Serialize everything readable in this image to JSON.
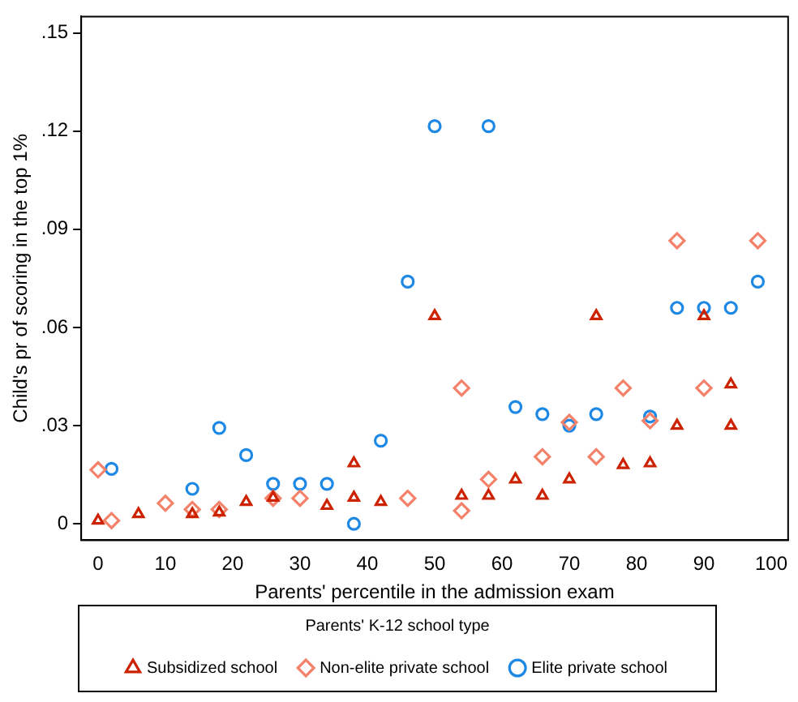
{
  "chart_data": {
    "type": "scatter",
    "xlabel": "Parents' percentile in the admission exam",
    "ylabel": "Child's pr of scoring in the top 1%",
    "legend_title": "Parents' K-12 school type",
    "legend": "bottom",
    "grid": false,
    "xlim": [
      -2.5,
      102.5
    ],
    "xticks": [
      0,
      10,
      20,
      30,
      40,
      50,
      60,
      70,
      80,
      90,
      100
    ],
    "ylim": [
      -0.005,
      0.155
    ],
    "yticks": [
      {
        "value": 0,
        "label": "0"
      },
      {
        "value": 0.03,
        "label": ".03"
      },
      {
        "value": 0.06,
        "label": ".06"
      },
      {
        "value": 0.09,
        "label": ".09"
      },
      {
        "value": 0.12,
        "label": ".12"
      },
      {
        "value": 0.15,
        "label": ".15"
      }
    ],
    "series": [
      {
        "name": "Subsidized school",
        "color": "#cc2200",
        "marker": "triangle",
        "x": [
          0,
          6,
          14,
          18,
          22,
          26,
          34,
          38,
          38,
          42,
          50,
          54,
          58,
          62,
          66,
          70,
          74,
          78,
          82,
          86,
          90,
          94,
          94
        ],
        "values": [
          0.001,
          0.003,
          0.003,
          0.0035,
          0.0067,
          0.008,
          0.0055,
          0.0185,
          0.008,
          0.0067,
          0.0635,
          0.0086,
          0.0086,
          0.0136,
          0.0086,
          0.0136,
          0.0635,
          0.018,
          0.0185,
          0.03,
          0.0635,
          0.0426,
          0.03
        ]
      },
      {
        "name": "Non-elite private school",
        "color": "#f4826a",
        "marker": "diamond",
        "x": [
          0,
          2,
          10,
          14,
          18,
          26,
          30,
          46,
          54,
          54,
          58,
          66,
          70,
          74,
          78,
          82,
          86,
          90,
          98
        ],
        "values": [
          0.0165,
          0.001,
          0.0063,
          0.0044,
          0.0044,
          0.0078,
          0.0078,
          0.0078,
          0.0415,
          0.004,
          0.0136,
          0.0205,
          0.031,
          0.0205,
          0.0415,
          0.0315,
          0.0865,
          0.0415,
          0.0865
        ]
      },
      {
        "name": "Elite private school",
        "color": "#1e88e5",
        "marker": "circle",
        "x": [
          2,
          14,
          18,
          22,
          26,
          30,
          34,
          38,
          42,
          46,
          50,
          58,
          62,
          66,
          70,
          74,
          82,
          86,
          90,
          94,
          98
        ],
        "values": [
          0.0168,
          0.0107,
          0.0293,
          0.021,
          0.0122,
          0.0122,
          0.0122,
          0.0,
          0.0254,
          0.074,
          0.1215,
          0.1215,
          0.0357,
          0.0335,
          0.03,
          0.0335,
          0.0328,
          0.066,
          0.066,
          0.066,
          0.074
        ]
      }
    ]
  }
}
